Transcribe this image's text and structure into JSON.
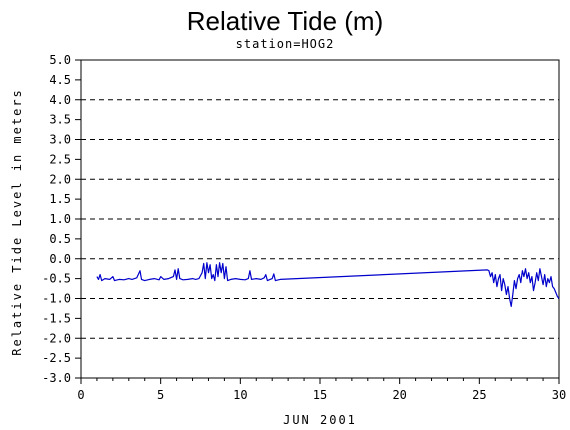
{
  "chart_data": {
    "type": "line",
    "title": "Relative Tide (m)",
    "subtitle": "station=HOG2",
    "xlabel": "JUN 2001",
    "ylabel": "Relative Tide Level in meters",
    "xlim": [
      0,
      30
    ],
    "ylim": [
      -3.0,
      5.0
    ],
    "x_ticks": [
      0,
      5,
      10,
      15,
      20,
      25,
      30
    ],
    "x_tick_labels": [
      "0",
      "5",
      "10",
      "15",
      "20",
      "25",
      "30"
    ],
    "y_ticks": [
      5.0,
      4.5,
      4.0,
      3.5,
      3.0,
      2.5,
      2.0,
      1.5,
      1.0,
      0.5,
      0.0,
      -0.5,
      -1.0,
      -1.5,
      -2.0,
      -2.5,
      -3.0
    ],
    "y_tick_labels": [
      "5.0",
      "4.5",
      "4.0",
      "3.5",
      "3.0",
      "2.5",
      "2.0",
      "1.5",
      "1.0",
      "0.5",
      "0.0",
      "-0.5",
      "-1.0",
      "-1.5",
      "-2.0",
      "-2.5",
      "-3.0"
    ],
    "gridlines_y": [
      5.0,
      4.0,
      3.0,
      2.0,
      1.0,
      0.0,
      -1.0,
      -2.0,
      -3.0
    ],
    "grid": "horizontal dashed at integer meters",
    "line_color": "#0000cc",
    "series": [
      {
        "values": [
          [
            1.0,
            -0.45
          ],
          [
            1.1,
            -0.52
          ],
          [
            1.2,
            -0.4
          ],
          [
            1.3,
            -0.55
          ],
          [
            1.5,
            -0.5
          ],
          [
            1.8,
            -0.52
          ],
          [
            2.0,
            -0.45
          ],
          [
            2.1,
            -0.55
          ],
          [
            2.4,
            -0.52
          ],
          [
            2.7,
            -0.53
          ],
          [
            3.0,
            -0.5
          ],
          [
            3.2,
            -0.52
          ],
          [
            3.5,
            -0.48
          ],
          [
            3.7,
            -0.3
          ],
          [
            3.8,
            -0.52
          ],
          [
            4.0,
            -0.55
          ],
          [
            4.3,
            -0.52
          ],
          [
            4.6,
            -0.5
          ],
          [
            4.9,
            -0.53
          ],
          [
            5.0,
            -0.45
          ],
          [
            5.2,
            -0.52
          ],
          [
            5.5,
            -0.5
          ],
          [
            5.8,
            -0.45
          ],
          [
            5.9,
            -0.28
          ],
          [
            6.0,
            -0.52
          ],
          [
            6.1,
            -0.25
          ],
          [
            6.2,
            -0.5
          ],
          [
            6.4,
            -0.53
          ],
          [
            6.7,
            -0.52
          ],
          [
            7.0,
            -0.5
          ],
          [
            7.2,
            -0.52
          ],
          [
            7.4,
            -0.5
          ],
          [
            7.6,
            -0.35
          ],
          [
            7.7,
            -0.12
          ],
          [
            7.8,
            -0.5
          ],
          [
            7.9,
            -0.1
          ],
          [
            8.0,
            -0.35
          ],
          [
            8.1,
            -0.15
          ],
          [
            8.2,
            -0.5
          ],
          [
            8.3,
            -0.4
          ],
          [
            8.4,
            -0.55
          ],
          [
            8.5,
            -0.15
          ],
          [
            8.6,
            -0.45
          ],
          [
            8.7,
            -0.1
          ],
          [
            8.8,
            -0.35
          ],
          [
            8.9,
            -0.12
          ],
          [
            9.0,
            -0.5
          ],
          [
            9.1,
            -0.2
          ],
          [
            9.2,
            -0.55
          ],
          [
            9.4,
            -0.52
          ],
          [
            9.7,
            -0.5
          ],
          [
            10.0,
            -0.52
          ],
          [
            10.3,
            -0.53
          ],
          [
            10.5,
            -0.5
          ],
          [
            10.6,
            -0.3
          ],
          [
            10.7,
            -0.52
          ],
          [
            11.0,
            -0.5
          ],
          [
            11.3,
            -0.52
          ],
          [
            11.5,
            -0.48
          ],
          [
            11.6,
            -0.4
          ],
          [
            11.7,
            -0.55
          ],
          [
            12.0,
            -0.5
          ],
          [
            12.1,
            -0.38
          ],
          [
            12.2,
            -0.55
          ],
          [
            12.5,
            -0.52
          ],
          [
            25.5,
            -0.28
          ],
          [
            25.6,
            -0.3
          ],
          [
            25.7,
            -0.45
          ],
          [
            25.8,
            -0.35
          ],
          [
            25.9,
            -0.6
          ],
          [
            26.0,
            -0.4
          ],
          [
            26.1,
            -0.7
          ],
          [
            26.2,
            -0.5
          ],
          [
            26.3,
            -0.4
          ],
          [
            26.4,
            -0.8
          ],
          [
            26.5,
            -0.5
          ],
          [
            26.6,
            -0.65
          ],
          [
            26.7,
            -0.9
          ],
          [
            26.8,
            -0.7
          ],
          [
            26.9,
            -1.0
          ],
          [
            27.0,
            -1.2
          ],
          [
            27.1,
            -0.9
          ],
          [
            27.2,
            -0.55
          ],
          [
            27.3,
            -0.75
          ],
          [
            27.4,
            -0.5
          ],
          [
            27.5,
            -0.4
          ],
          [
            27.6,
            -0.6
          ],
          [
            27.7,
            -0.3
          ],
          [
            27.8,
            -0.45
          ],
          [
            27.9,
            -0.25
          ],
          [
            28.0,
            -0.5
          ],
          [
            28.1,
            -0.35
          ],
          [
            28.2,
            -0.6
          ],
          [
            28.3,
            -0.45
          ],
          [
            28.4,
            -0.8
          ],
          [
            28.5,
            -0.6
          ],
          [
            28.6,
            -0.35
          ],
          [
            28.7,
            -0.55
          ],
          [
            28.8,
            -0.25
          ],
          [
            28.9,
            -0.45
          ],
          [
            29.0,
            -0.65
          ],
          [
            29.1,
            -0.4
          ],
          [
            29.2,
            -0.7
          ],
          [
            29.3,
            -0.5
          ],
          [
            29.4,
            -0.6
          ],
          [
            29.5,
            -0.45
          ],
          [
            29.6,
            -0.7
          ],
          [
            29.7,
            -0.75
          ],
          [
            29.8,
            -0.85
          ],
          [
            29.9,
            -0.95
          ],
          [
            30.0,
            -1.0
          ]
        ]
      }
    ]
  }
}
